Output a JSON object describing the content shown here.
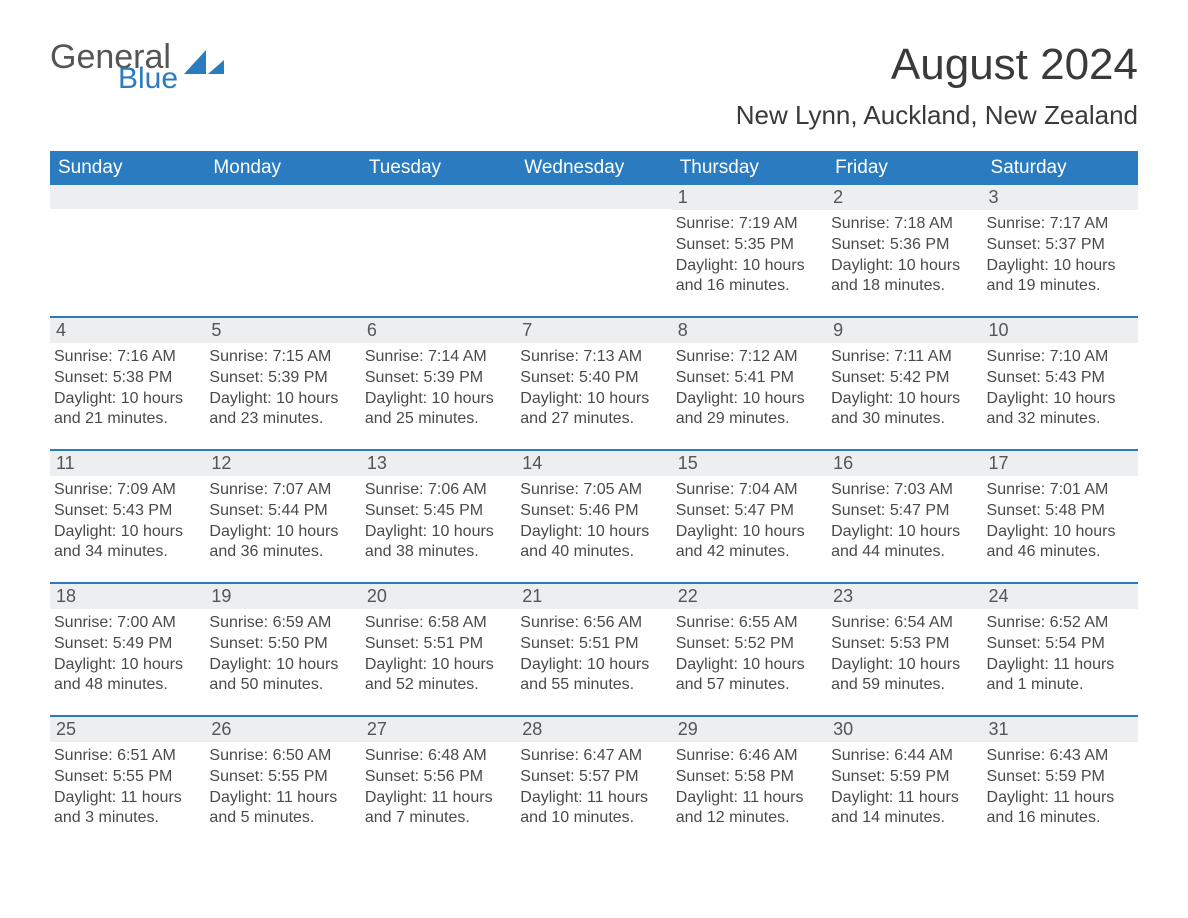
{
  "colors": {
    "header_bg": "#2a7bbf",
    "header_text": "#ffffff",
    "daynum_bg": "#eceeef",
    "body_text": "#4a4a4a",
    "border": "#2a7bbf",
    "page_bg": "#ffffff"
  },
  "logo": {
    "text1": "General",
    "text2": "Blue"
  },
  "title": {
    "main": "August 2024",
    "location": "New Lynn, Auckland, New Zealand"
  },
  "day_headers": [
    "Sunday",
    "Monday",
    "Tuesday",
    "Wednesday",
    "Thursday",
    "Friday",
    "Saturday"
  ],
  "weeks": [
    [
      null,
      null,
      null,
      null,
      {
        "n": "1",
        "sunrise": "7:19 AM",
        "sunset": "5:35 PM",
        "daylight": "10 hours and 16 minutes."
      },
      {
        "n": "2",
        "sunrise": "7:18 AM",
        "sunset": "5:36 PM",
        "daylight": "10 hours and 18 minutes."
      },
      {
        "n": "3",
        "sunrise": "7:17 AM",
        "sunset": "5:37 PM",
        "daylight": "10 hours and 19 minutes."
      }
    ],
    [
      {
        "n": "4",
        "sunrise": "7:16 AM",
        "sunset": "5:38 PM",
        "daylight": "10 hours and 21 minutes."
      },
      {
        "n": "5",
        "sunrise": "7:15 AM",
        "sunset": "5:39 PM",
        "daylight": "10 hours and 23 minutes."
      },
      {
        "n": "6",
        "sunrise": "7:14 AM",
        "sunset": "5:39 PM",
        "daylight": "10 hours and 25 minutes."
      },
      {
        "n": "7",
        "sunrise": "7:13 AM",
        "sunset": "5:40 PM",
        "daylight": "10 hours and 27 minutes."
      },
      {
        "n": "8",
        "sunrise": "7:12 AM",
        "sunset": "5:41 PM",
        "daylight": "10 hours and 29 minutes."
      },
      {
        "n": "9",
        "sunrise": "7:11 AM",
        "sunset": "5:42 PM",
        "daylight": "10 hours and 30 minutes."
      },
      {
        "n": "10",
        "sunrise": "7:10 AM",
        "sunset": "5:43 PM",
        "daylight": "10 hours and 32 minutes."
      }
    ],
    [
      {
        "n": "11",
        "sunrise": "7:09 AM",
        "sunset": "5:43 PM",
        "daylight": "10 hours and 34 minutes."
      },
      {
        "n": "12",
        "sunrise": "7:07 AM",
        "sunset": "5:44 PM",
        "daylight": "10 hours and 36 minutes."
      },
      {
        "n": "13",
        "sunrise": "7:06 AM",
        "sunset": "5:45 PM",
        "daylight": "10 hours and 38 minutes."
      },
      {
        "n": "14",
        "sunrise": "7:05 AM",
        "sunset": "5:46 PM",
        "daylight": "10 hours and 40 minutes."
      },
      {
        "n": "15",
        "sunrise": "7:04 AM",
        "sunset": "5:47 PM",
        "daylight": "10 hours and 42 minutes."
      },
      {
        "n": "16",
        "sunrise": "7:03 AM",
        "sunset": "5:47 PM",
        "daylight": "10 hours and 44 minutes."
      },
      {
        "n": "17",
        "sunrise": "7:01 AM",
        "sunset": "5:48 PM",
        "daylight": "10 hours and 46 minutes."
      }
    ],
    [
      {
        "n": "18",
        "sunrise": "7:00 AM",
        "sunset": "5:49 PM",
        "daylight": "10 hours and 48 minutes."
      },
      {
        "n": "19",
        "sunrise": "6:59 AM",
        "sunset": "5:50 PM",
        "daylight": "10 hours and 50 minutes."
      },
      {
        "n": "20",
        "sunrise": "6:58 AM",
        "sunset": "5:51 PM",
        "daylight": "10 hours and 52 minutes."
      },
      {
        "n": "21",
        "sunrise": "6:56 AM",
        "sunset": "5:51 PM",
        "daylight": "10 hours and 55 minutes."
      },
      {
        "n": "22",
        "sunrise": "6:55 AM",
        "sunset": "5:52 PM",
        "daylight": "10 hours and 57 minutes."
      },
      {
        "n": "23",
        "sunrise": "6:54 AM",
        "sunset": "5:53 PM",
        "daylight": "10 hours and 59 minutes."
      },
      {
        "n": "24",
        "sunrise": "6:52 AM",
        "sunset": "5:54 PM",
        "daylight": "11 hours and 1 minute."
      }
    ],
    [
      {
        "n": "25",
        "sunrise": "6:51 AM",
        "sunset": "5:55 PM",
        "daylight": "11 hours and 3 minutes."
      },
      {
        "n": "26",
        "sunrise": "6:50 AM",
        "sunset": "5:55 PM",
        "daylight": "11 hours and 5 minutes."
      },
      {
        "n": "27",
        "sunrise": "6:48 AM",
        "sunset": "5:56 PM",
        "daylight": "11 hours and 7 minutes."
      },
      {
        "n": "28",
        "sunrise": "6:47 AM",
        "sunset": "5:57 PM",
        "daylight": "11 hours and 10 minutes."
      },
      {
        "n": "29",
        "sunrise": "6:46 AM",
        "sunset": "5:58 PM",
        "daylight": "11 hours and 12 minutes."
      },
      {
        "n": "30",
        "sunrise": "6:44 AM",
        "sunset": "5:59 PM",
        "daylight": "11 hours and 14 minutes."
      },
      {
        "n": "31",
        "sunrise": "6:43 AM",
        "sunset": "5:59 PM",
        "daylight": "11 hours and 16 minutes."
      }
    ]
  ],
  "labels": {
    "sunrise": "Sunrise: ",
    "sunset": "Sunset: ",
    "daylight": "Daylight: "
  },
  "typography": {
    "title_fontsize": 44,
    "subtitle_fontsize": 26,
    "dayhead_fontsize": 19,
    "daynum_fontsize": 18,
    "body_fontsize": 16
  }
}
